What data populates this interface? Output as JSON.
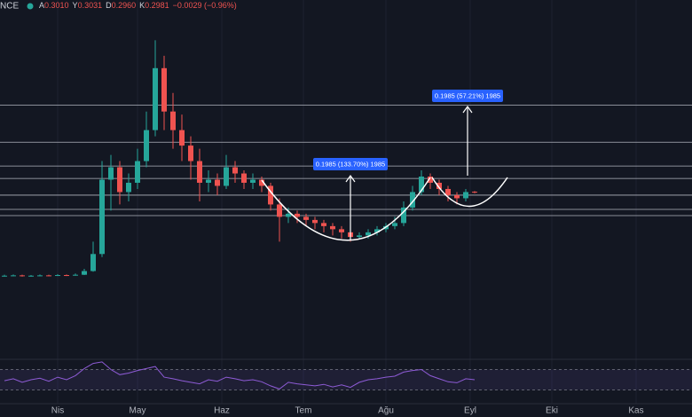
{
  "chart_data": {
    "type": "candlestick",
    "header": {
      "symbol": "NCE",
      "items": [
        {
          "label": "A",
          "value": "0.3010"
        },
        {
          "label": "Y",
          "value": "0.3031"
        },
        {
          "label": "D",
          "value": "0.2960"
        },
        {
          "label": "K",
          "value": "0.2981"
        }
      ],
      "change": "−0.0029 (−0.96%)"
    },
    "xlim": [
      -0.5,
      77.5
    ],
    "xticks": [
      {
        "value": 6,
        "label": "Nis"
      },
      {
        "value": 15,
        "label": "May"
      },
      {
        "value": 24.5,
        "label": "Haz"
      },
      {
        "value": 33.7,
        "label": "Tem"
      },
      {
        "value": 43,
        "label": "Ağu"
      },
      {
        "value": 52.5,
        "label": "Eyl"
      },
      {
        "value": 61.7,
        "label": "Eki"
      },
      {
        "value": 71.2,
        "label": "Kas"
      }
    ],
    "ylim": [
      -0.24,
      0.92
    ],
    "up_color": "#26a69a",
    "down_color": "#ef5350",
    "open": [
      0.029,
      0.03,
      0.031,
      0.029,
      0.03,
      0.031,
      0.03,
      0.032,
      0.031,
      0.033,
      0.045,
      0.1,
      0.34,
      0.38,
      0.3,
      0.33,
      0.4,
      0.5,
      0.7,
      0.56,
      0.5,
      0.45,
      0.4,
      0.33,
      0.34,
      0.32,
      0.38,
      0.36,
      0.33,
      0.34,
      0.32,
      0.26,
      0.22,
      0.23,
      0.22,
      0.21,
      0.2,
      0.19,
      0.18,
      0.17,
      0.155,
      0.16,
      0.17,
      0.18,
      0.19,
      0.2,
      0.25,
      0.3,
      0.35,
      0.33,
      0.31,
      0.29,
      0.28,
      0.301
    ],
    "high": [
      0.033,
      0.034,
      0.033,
      0.032,
      0.034,
      0.033,
      0.035,
      0.034,
      0.037,
      0.052,
      0.14,
      0.4,
      0.42,
      0.4,
      0.36,
      0.44,
      0.56,
      0.79,
      0.74,
      0.62,
      0.55,
      0.48,
      0.44,
      0.37,
      0.36,
      0.42,
      0.4,
      0.37,
      0.36,
      0.35,
      0.33,
      0.28,
      0.25,
      0.24,
      0.23,
      0.22,
      0.21,
      0.2,
      0.19,
      0.18,
      0.17,
      0.18,
      0.19,
      0.2,
      0.22,
      0.27,
      0.32,
      0.37,
      0.36,
      0.34,
      0.32,
      0.3,
      0.31,
      0.3031
    ],
    "low": [
      0.027,
      0.028,
      0.027,
      0.027,
      0.028,
      0.028,
      0.029,
      0.029,
      0.03,
      0.032,
      0.043,
      0.09,
      0.24,
      0.26,
      0.27,
      0.31,
      0.38,
      0.48,
      0.5,
      0.44,
      0.4,
      0.34,
      0.27,
      0.3,
      0.29,
      0.31,
      0.33,
      0.31,
      0.31,
      0.3,
      0.24,
      0.14,
      0.2,
      0.2,
      0.19,
      0.18,
      0.17,
      0.16,
      0.15,
      0.14,
      0.15,
      0.15,
      0.16,
      0.17,
      0.18,
      0.19,
      0.24,
      0.29,
      0.31,
      0.29,
      0.27,
      0.26,
      0.27,
      0.296
    ],
    "close": [
      0.03,
      0.031,
      0.029,
      0.03,
      0.031,
      0.03,
      0.032,
      0.031,
      0.033,
      0.045,
      0.1,
      0.34,
      0.38,
      0.3,
      0.33,
      0.4,
      0.5,
      0.7,
      0.56,
      0.5,
      0.45,
      0.4,
      0.33,
      0.34,
      0.32,
      0.38,
      0.36,
      0.33,
      0.34,
      0.32,
      0.26,
      0.22,
      0.23,
      0.22,
      0.21,
      0.2,
      0.19,
      0.18,
      0.17,
      0.155,
      0.16,
      0.17,
      0.18,
      0.19,
      0.2,
      0.25,
      0.3,
      0.35,
      0.33,
      0.31,
      0.29,
      0.28,
      0.3,
      0.2981
    ],
    "levels": [
      0.581,
      0.461,
      0.384,
      0.344,
      0.29,
      0.244,
      0.224
    ],
    "level_color": "#b2b5be",
    "annotations": [
      "0.1985 (133.70%) 1985",
      "0.1985 (57.21%) 1985"
    ],
    "rsi": {
      "color": "#8e5bd6",
      "ylim": [
        10,
        90
      ],
      "bands": [
        70,
        30
      ],
      "values": [
        48,
        52,
        45,
        50,
        53,
        47,
        55,
        50,
        58,
        72,
        82,
        85,
        70,
        60,
        63,
        68,
        72,
        76,
        55,
        52,
        48,
        45,
        42,
        50,
        47,
        55,
        52,
        48,
        50,
        46,
        38,
        32,
        45,
        42,
        40,
        38,
        41,
        36,
        40,
        35,
        45,
        50,
        52,
        55,
        57,
        65,
        68,
        70,
        58,
        52,
        46,
        44,
        52,
        50
      ]
    }
  }
}
